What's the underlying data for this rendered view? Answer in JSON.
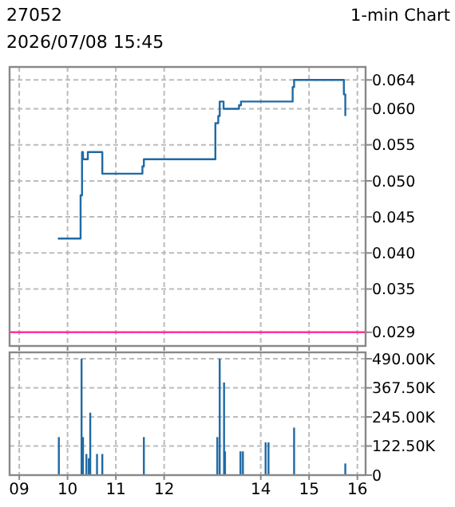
{
  "chart_data": [
    {
      "type": "step",
      "title": "27052",
      "subtitle": "2026/07/08 15:45",
      "annotations": [
        "1-min Chart"
      ],
      "x": [
        9.8,
        10.27,
        10.3,
        10.32,
        10.42,
        10.72,
        11.55,
        11.58,
        13.06,
        13.12,
        13.15,
        13.23,
        13.55,
        13.59,
        14.66,
        14.69,
        15.72,
        15.75
      ],
      "series": [
        {
          "color": "#1f6aa5",
          "values": [
            0.042,
            0.048,
            0.054,
            0.053,
            0.054,
            0.051,
            0.052,
            0.053,
            0.058,
            0.059,
            0.061,
            0.06,
            0.0605,
            0.061,
            0.063,
            0.064,
            0.062,
            0.059
          ]
        }
      ],
      "xlim": [
        8.8,
        16.17
      ],
      "xticks": [
        9,
        10,
        11,
        12,
        14,
        15,
        16
      ],
      "ylim": [
        0.0271,
        0.0658
      ],
      "yticks": [
        {
          "value": 0.029,
          "label": "0.029"
        },
        {
          "value": 0.035,
          "label": "0.035"
        },
        {
          "value": 0.04,
          "label": "0.040"
        },
        {
          "value": 0.045,
          "label": "0.045"
        },
        {
          "value": 0.05,
          "label": "0.050"
        },
        {
          "value": 0.055,
          "label": "0.055"
        },
        {
          "value": 0.06,
          "label": "0.060"
        },
        {
          "value": 0.064,
          "label": "0.064"
        }
      ],
      "ref_lines": [
        {
          "axis": "y",
          "value": 0.029,
          "color": "#ff3399"
        }
      ],
      "grid": true,
      "tick_labels": "y",
      "line_style": "solid"
    },
    {
      "type": "bar",
      "x": [
        9.82,
        10.29,
        10.32,
        10.39,
        10.44,
        10.47,
        10.61,
        10.72,
        11.58,
        13.1,
        13.15,
        13.24,
        13.26,
        13.58,
        13.63,
        14.1,
        14.16,
        14.69,
        15.75
      ],
      "series": [
        {
          "color": "#1f6aa5",
          "values": [
            160000,
            490000,
            160000,
            89000,
            71000,
            263000,
            89000,
            89000,
            160000,
            160000,
            490000,
            390000,
            100000,
            100000,
            100000,
            138000,
            138000,
            200000,
            49000
          ]
        }
      ],
      "xlim": [
        8.8,
        16.17
      ],
      "xticks": [
        {
          "value": 9,
          "label": "09"
        },
        10,
        11,
        12,
        14,
        15,
        16
      ],
      "ylim": [
        0,
        517000
      ],
      "yticks": [
        0,
        {
          "value": 122500,
          "label": "122.50K"
        },
        {
          "value": 245000,
          "label": "245.00K"
        },
        {
          "value": 367500,
          "label": "367.50K"
        },
        {
          "value": 490000,
          "label": "490.00K"
        }
      ],
      "grid": true
    }
  ]
}
